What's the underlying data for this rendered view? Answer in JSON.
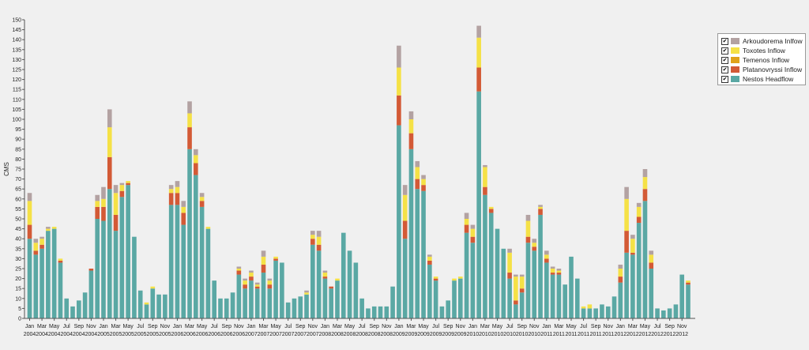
{
  "chart_data": {
    "type": "bar",
    "stacked": true,
    "ylabel": "CMS",
    "ylim": [
      0,
      150
    ],
    "y_ticks": [
      0,
      5,
      10,
      15,
      20,
      25,
      30,
      35,
      40,
      45,
      50,
      55,
      60,
      65,
      70,
      75,
      80,
      85,
      90,
      95,
      100,
      105,
      110,
      115,
      120,
      125,
      130,
      135,
      140,
      145,
      150
    ],
    "x_tick_labels": [
      {
        "m": "Jan",
        "y": "2004"
      },
      {
        "m": "Mar",
        "y": "2004"
      },
      {
        "m": "May",
        "y": "2004"
      },
      {
        "m": "Jul",
        "y": "2004"
      },
      {
        "m": "Sep",
        "y": "2004"
      },
      {
        "m": "Nov",
        "y": "2004"
      },
      {
        "m": "Jan",
        "y": "2005"
      },
      {
        "m": "Mar",
        "y": "2005"
      },
      {
        "m": "May",
        "y": "2005"
      },
      {
        "m": "Jul",
        "y": "2005"
      },
      {
        "m": "Sep",
        "y": "2005"
      },
      {
        "m": "Nov",
        "y": "2005"
      },
      {
        "m": "Jan",
        "y": "2006"
      },
      {
        "m": "Mar",
        "y": "2006"
      },
      {
        "m": "May",
        "y": "2006"
      },
      {
        "m": "Jul",
        "y": "2006"
      },
      {
        "m": "Sep",
        "y": "2006"
      },
      {
        "m": "Nov",
        "y": "2006"
      },
      {
        "m": "Jan",
        "y": "2007"
      },
      {
        "m": "Mar",
        "y": "2007"
      },
      {
        "m": "May",
        "y": "2007"
      },
      {
        "m": "Jul",
        "y": "2007"
      },
      {
        "m": "Sep",
        "y": "2007"
      },
      {
        "m": "Nov",
        "y": "2007"
      },
      {
        "m": "Jan",
        "y": "2008"
      },
      {
        "m": "Mar",
        "y": "2008"
      },
      {
        "m": "May",
        "y": "2008"
      },
      {
        "m": "Jul",
        "y": "2008"
      },
      {
        "m": "Sep",
        "y": "2008"
      },
      {
        "m": "Nov",
        "y": "2008"
      },
      {
        "m": "Jan",
        "y": "2009"
      },
      {
        "m": "Mar",
        "y": "2009"
      },
      {
        "m": "May",
        "y": "2009"
      },
      {
        "m": "Jul",
        "y": "2009"
      },
      {
        "m": "Sep",
        "y": "2009"
      },
      {
        "m": "Nov",
        "y": "2009"
      },
      {
        "m": "Jan",
        "y": "2010"
      },
      {
        "m": "Mar",
        "y": "2010"
      },
      {
        "m": "May",
        "y": "2010"
      },
      {
        "m": "Jul",
        "y": "2010"
      },
      {
        "m": "Sep",
        "y": "2010"
      },
      {
        "m": "Nov",
        "y": "2010"
      },
      {
        "m": "Jan",
        "y": "2011"
      },
      {
        "m": "Mar",
        "y": "2011"
      },
      {
        "m": "May",
        "y": "2011"
      },
      {
        "m": "Jul",
        "y": "2011"
      },
      {
        "m": "Sep",
        "y": "2011"
      },
      {
        "m": "Nov",
        "y": "2011"
      },
      {
        "m": "Jan",
        "y": "2012"
      },
      {
        "m": "Mar",
        "y": "2012"
      },
      {
        "m": "May",
        "y": "2012"
      },
      {
        "m": "Jul",
        "y": "2012"
      },
      {
        "m": "Sep",
        "y": "2012"
      },
      {
        "m": "Nov",
        "y": "2012"
      }
    ],
    "series": [
      {
        "name": "Nestos Headflow",
        "color": "#5aa8a4",
        "values": [
          40,
          32,
          35,
          44,
          45,
          28,
          10,
          6,
          9,
          13,
          24,
          50,
          49,
          65,
          44,
          61,
          67,
          41,
          14,
          7,
          15,
          12,
          12,
          57,
          57,
          47,
          85,
          72,
          56,
          45,
          19,
          10,
          10,
          13,
          22,
          15,
          19,
          15,
          23,
          15,
          29,
          28,
          8,
          10,
          11,
          12,
          37,
          34,
          20,
          15,
          19,
          43,
          34,
          28,
          10,
          5,
          6,
          6,
          6,
          16,
          97,
          40,
          85,
          65,
          64,
          27,
          19,
          6,
          9,
          19,
          20,
          43,
          38,
          114,
          62,
          53,
          45,
          35,
          20,
          7,
          13,
          38,
          34,
          52,
          28,
          22,
          22,
          17,
          31,
          20,
          5,
          5,
          5,
          7,
          6,
          11,
          18,
          33,
          32,
          48,
          59,
          25,
          5,
          4,
          5,
          7,
          22,
          17
        ]
      },
      {
        "name": "Platanovryssi Inflow",
        "color": "#d35a36",
        "values": [
          7,
          2,
          2,
          0,
          0,
          1,
          0,
          0,
          0,
          0,
          1,
          6,
          7,
          16,
          8,
          3,
          1,
          0,
          0,
          0,
          0,
          0,
          0,
          6,
          6,
          6,
          11,
          6,
          3,
          0,
          0,
          0,
          0,
          0,
          2,
          2,
          2,
          1,
          4,
          2,
          1,
          0,
          0,
          0,
          0,
          0,
          3,
          3,
          1,
          1,
          0,
          0,
          0,
          0,
          0,
          0,
          0,
          0,
          0,
          0,
          15,
          9,
          8,
          5,
          3,
          2,
          1,
          0,
          0,
          0,
          0,
          4,
          3,
          12,
          4,
          2,
          0,
          0,
          3,
          2,
          2,
          3,
          2,
          3,
          2,
          1,
          1,
          0,
          0,
          0,
          0,
          0,
          0,
          0,
          0,
          0,
          3,
          11,
          1,
          3,
          6,
          3,
          0,
          0,
          0,
          0,
          0,
          1
        ]
      },
      {
        "name": "Temenos Inflow",
        "color": "#e0a21a",
        "values": [
          0,
          0,
          0,
          0,
          0,
          0,
          0,
          0,
          0,
          0,
          0,
          0,
          0,
          0,
          0,
          0,
          0,
          0,
          0,
          0,
          0,
          0,
          0,
          0,
          0,
          0,
          0,
          0,
          0,
          0,
          0,
          0,
          0,
          0,
          0,
          0,
          0,
          0,
          0,
          0,
          0,
          0,
          0,
          0,
          0,
          0,
          0,
          0,
          0,
          0,
          0,
          0,
          0,
          0,
          0,
          0,
          0,
          0,
          0,
          0,
          0,
          0,
          0,
          0,
          0,
          0,
          0,
          0,
          0,
          0,
          0,
          0,
          0,
          0,
          0,
          0,
          0,
          0,
          0,
          0,
          0,
          0,
          0,
          0,
          0,
          0,
          0,
          0,
          0,
          0,
          0,
          0,
          0,
          0,
          0,
          0,
          0,
          0,
          0,
          0,
          0,
          0,
          0,
          0,
          0,
          0,
          0,
          0
        ]
      },
      {
        "name": "Toxotes Inflow",
        "color": "#f5e146",
        "values": [
          12,
          4,
          3,
          1,
          1,
          1,
          0,
          0,
          0,
          0,
          0,
          3,
          4,
          15,
          11,
          3,
          1,
          0,
          0,
          1,
          1,
          0,
          0,
          2,
          3,
          3,
          7,
          4,
          2,
          1,
          0,
          0,
          0,
          0,
          1,
          2,
          2,
          1,
          4,
          2,
          1,
          0,
          0,
          0,
          0,
          1,
          2,
          4,
          2,
          0,
          1,
          0,
          0,
          0,
          0,
          0,
          0,
          0,
          0,
          0,
          14,
          13,
          7,
          6,
          3,
          2,
          1,
          0,
          0,
          1,
          1,
          3,
          4,
          15,
          10,
          1,
          0,
          0,
          10,
          12,
          6,
          8,
          2,
          1,
          2,
          2,
          1,
          0,
          0,
          0,
          1,
          2,
          0,
          0,
          0,
          0,
          4,
          16,
          7,
          5,
          6,
          4,
          0,
          0,
          0,
          0,
          0,
          1
        ]
      },
      {
        "name": "Arkoudorema Inflow",
        "color": "#b3a2a2",
        "values": [
          4,
          2,
          1,
          1,
          0,
          0,
          0,
          0,
          0,
          0,
          0,
          3,
          6,
          9,
          4,
          1,
          0,
          0,
          0,
          0,
          0,
          0,
          0,
          2,
          3,
          3,
          6,
          3,
          2,
          0,
          0,
          0,
          0,
          0,
          1,
          1,
          1,
          1,
          3,
          1,
          0,
          0,
          0,
          0,
          0,
          1,
          2,
          3,
          1,
          0,
          0,
          0,
          0,
          0,
          0,
          0,
          0,
          0,
          0,
          0,
          11,
          5,
          4,
          3,
          2,
          1,
          0,
          0,
          0,
          0,
          0,
          3,
          2,
          6,
          1,
          0,
          0,
          0,
          2,
          1,
          1,
          3,
          2,
          1,
          2,
          1,
          1,
          0,
          0,
          0,
          0,
          0,
          0,
          0,
          0,
          0,
          2,
          6,
          2,
          2,
          4,
          2,
          0,
          0,
          0,
          0,
          0,
          0
        ]
      }
    ],
    "legend": [
      "Arkoudorema Inlfow",
      "Toxotes Inflow",
      "Temenos Inflow",
      "Platanovryssi Inflow",
      "Nestos Headflow"
    ],
    "legend_colors": [
      "#b3a2a2",
      "#f5e146",
      "#e0a21a",
      "#d35a36",
      "#5aa8a4"
    ],
    "legend_position": "top-right",
    "grid": false
  }
}
